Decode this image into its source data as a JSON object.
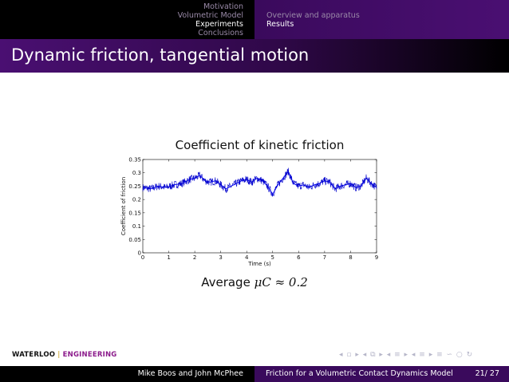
{
  "nav": {
    "sections": [
      "Motivation",
      "Volumetric Model",
      "Experiments",
      "Conclusions"
    ],
    "active_section": 2,
    "subsections": [
      "Overview and apparatus",
      "Results"
    ],
    "active_subsection": 1
  },
  "frame_title": "Dynamic friction, tangential motion",
  "chart_data": {
    "type": "line",
    "title": "Coefficient of kinetic friction",
    "xlabel": "Time (s)",
    "ylabel": "Coefficient of friction",
    "xlim": [
      0,
      9
    ],
    "ylim": [
      0,
      0.35
    ],
    "xticks": [
      "0",
      "1",
      "2",
      "3",
      "4",
      "5",
      "6",
      "7",
      "8",
      "9"
    ],
    "yticks": [
      "0",
      "0.05",
      "0.1",
      "0.15",
      "0.2",
      "0.25",
      "0.3",
      "0.35"
    ],
    "grid": false,
    "line_color": "#0000ff",
    "series": [
      {
        "x": [
          0,
          0.3,
          0.6,
          0.9,
          1.2,
          1.5,
          1.8,
          2.0,
          2.2,
          2.4,
          2.6,
          2.8,
          3.0,
          3.2,
          3.4,
          3.6,
          3.8,
          4.0,
          4.2,
          4.4,
          4.6,
          4.8,
          5.0,
          5.2,
          5.4,
          5.6,
          5.8,
          6.0,
          6.2,
          6.4,
          6.6,
          6.8,
          7.0,
          7.2,
          7.4,
          7.6,
          7.8,
          8.0,
          8.2,
          8.4,
          8.6,
          8.8,
          9.0
        ],
        "y": [
          0.245,
          0.24,
          0.25,
          0.245,
          0.255,
          0.26,
          0.275,
          0.28,
          0.29,
          0.27,
          0.265,
          0.27,
          0.255,
          0.24,
          0.25,
          0.26,
          0.27,
          0.275,
          0.265,
          0.28,
          0.27,
          0.25,
          0.22,
          0.255,
          0.28,
          0.305,
          0.26,
          0.25,
          0.255,
          0.245,
          0.255,
          0.26,
          0.27,
          0.265,
          0.24,
          0.25,
          0.255,
          0.26,
          0.245,
          0.25,
          0.28,
          0.26,
          0.245
        ]
      }
    ]
  },
  "average": {
    "prefix": "Average",
    "expression": "μC ≈ 0.2"
  },
  "logo": {
    "left": "WATERLOO",
    "separator": "|",
    "right": "ENGINEERING"
  },
  "nav_symbols": "◂ ▫ ▸ ◂ ⧉ ▸ ◂ ≡ ▸ ◂ ≡ ▸ ≡ ∽ ○ ↻",
  "footer": {
    "authors": "Mike Boos and John McPhee",
    "title": "Friction for a Volumetric Contact Dynamics Model",
    "page": "21/ 27"
  }
}
